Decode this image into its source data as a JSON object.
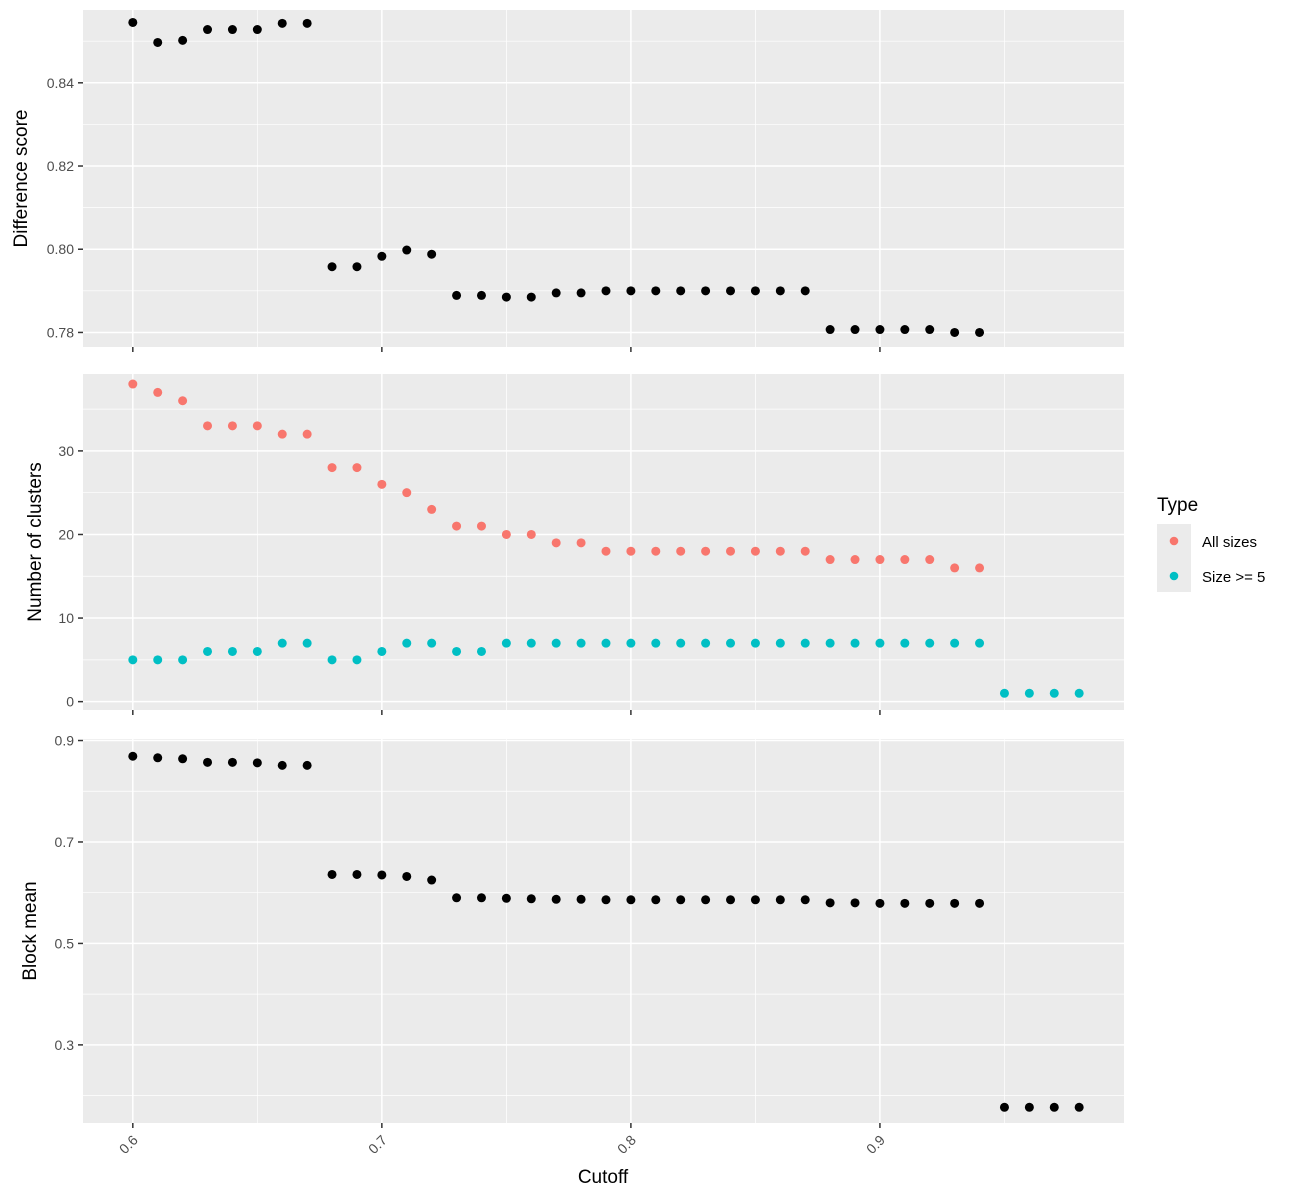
{
  "chart_data": [
    {
      "type": "scatter",
      "ylabel": "Difference score",
      "xlim": [
        0.58,
        0.998
      ],
      "ylim": [
        0.7765,
        0.8575
      ],
      "xticks": [
        0.6,
        0.7,
        0.8,
        0.9
      ],
      "yticks": [
        0.78,
        0.8,
        0.82,
        0.84
      ],
      "ytick_labels": [
        "0.78",
        "0.80",
        "0.82",
        "0.84"
      ],
      "grid": true,
      "series": [
        {
          "color": "#000000",
          "x": [
            0.6,
            0.61,
            0.62,
            0.63,
            0.64,
            0.65,
            0.66,
            0.67,
            0.68,
            0.69,
            0.7,
            0.71,
            0.72,
            0.73,
            0.74,
            0.75,
            0.76,
            0.77,
            0.78,
            0.79,
            0.8,
            0.81,
            0.82,
            0.83,
            0.84,
            0.85,
            0.86,
            0.87,
            0.88,
            0.89,
            0.9,
            0.91,
            0.92,
            0.93,
            0.94
          ],
          "y": [
            0.8545,
            0.8497,
            0.8502,
            0.8528,
            0.8528,
            0.8528,
            0.8543,
            0.8543,
            0.7958,
            0.7958,
            0.7983,
            0.7998,
            0.7988,
            0.7889,
            0.7889,
            0.7885,
            0.7885,
            0.7895,
            0.7895,
            0.79,
            0.79,
            0.79,
            0.79,
            0.79,
            0.79,
            0.79,
            0.79,
            0.79,
            0.7807,
            0.7807,
            0.7807,
            0.7807,
            0.7807,
            0.78,
            0.78
          ]
        }
      ]
    },
    {
      "type": "scatter",
      "ylabel": "Number of clusters",
      "xlim": [
        0.58,
        0.998
      ],
      "ylim": [
        -1.0,
        39.2
      ],
      "xticks": [
        0.6,
        0.7,
        0.8,
        0.9
      ],
      "yticks": [
        0,
        10,
        20,
        30
      ],
      "ytick_labels": [
        "0",
        "10",
        "20",
        "30"
      ],
      "grid": true,
      "legend": {
        "title": "Type",
        "position": "right"
      },
      "series": [
        {
          "name": "All sizes",
          "color": "#F8766D",
          "x": [
            0.6,
            0.61,
            0.62,
            0.63,
            0.64,
            0.65,
            0.66,
            0.67,
            0.68,
            0.69,
            0.7,
            0.71,
            0.72,
            0.73,
            0.74,
            0.75,
            0.76,
            0.77,
            0.78,
            0.79,
            0.8,
            0.81,
            0.82,
            0.83,
            0.84,
            0.85,
            0.86,
            0.87,
            0.88,
            0.89,
            0.9,
            0.91,
            0.92,
            0.93,
            0.94
          ],
          "y": [
            38,
            37,
            36,
            33,
            33,
            33,
            32,
            32,
            28,
            28,
            26,
            25,
            23,
            21,
            21,
            20,
            20,
            19,
            19,
            18,
            18,
            18,
            18,
            18,
            18,
            18,
            18,
            18,
            17,
            17,
            17,
            17,
            17,
            16,
            16
          ]
        },
        {
          "name": "Size >= 5",
          "color": "#00BFC4",
          "x": [
            0.6,
            0.61,
            0.62,
            0.63,
            0.64,
            0.65,
            0.66,
            0.67,
            0.68,
            0.69,
            0.7,
            0.71,
            0.72,
            0.73,
            0.74,
            0.75,
            0.76,
            0.77,
            0.78,
            0.79,
            0.8,
            0.81,
            0.82,
            0.83,
            0.84,
            0.85,
            0.86,
            0.87,
            0.88,
            0.89,
            0.9,
            0.91,
            0.92,
            0.93,
            0.94,
            0.95,
            0.96,
            0.97,
            0.98
          ],
          "y": [
            5,
            5,
            5,
            6,
            6,
            6,
            7,
            7,
            5,
            5,
            6,
            7,
            7,
            6,
            6,
            7,
            7,
            7,
            7,
            7,
            7,
            7,
            7,
            7,
            7,
            7,
            7,
            7,
            7,
            7,
            7,
            7,
            7,
            7,
            7,
            1,
            1,
            1,
            1
          ]
        }
      ]
    },
    {
      "type": "scatter",
      "ylabel": "Block mean",
      "xlabel": "Cutoff",
      "xlim": [
        0.58,
        0.998
      ],
      "ylim": [
        0.146,
        0.903
      ],
      "xticks": [
        0.6,
        0.7,
        0.8,
        0.9
      ],
      "xtick_labels": [
        "0.6",
        "0.7",
        "0.8",
        "0.9"
      ],
      "yticks": [
        0.3,
        0.5,
        0.7,
        0.9
      ],
      "ytick_labels": [
        "0.3",
        "0.5",
        "0.7",
        "0.9"
      ],
      "grid": true,
      "series": [
        {
          "color": "#000000",
          "x": [
            0.6,
            0.61,
            0.62,
            0.63,
            0.64,
            0.65,
            0.66,
            0.67,
            0.68,
            0.69,
            0.7,
            0.71,
            0.72,
            0.73,
            0.74,
            0.75,
            0.76,
            0.77,
            0.78,
            0.79,
            0.8,
            0.81,
            0.82,
            0.83,
            0.84,
            0.85,
            0.86,
            0.87,
            0.88,
            0.89,
            0.9,
            0.91,
            0.92,
            0.93,
            0.94,
            0.95,
            0.96,
            0.97,
            0.98
          ],
          "y": [
            0.869,
            0.866,
            0.864,
            0.857,
            0.857,
            0.856,
            0.851,
            0.851,
            0.636,
            0.636,
            0.635,
            0.632,
            0.625,
            0.59,
            0.59,
            0.589,
            0.588,
            0.587,
            0.587,
            0.586,
            0.586,
            0.586,
            0.586,
            0.586,
            0.586,
            0.586,
            0.586,
            0.586,
            0.58,
            0.58,
            0.579,
            0.579,
            0.579,
            0.579,
            0.579,
            0.177,
            0.177,
            0.177,
            0.177
          ]
        }
      ]
    }
  ]
}
